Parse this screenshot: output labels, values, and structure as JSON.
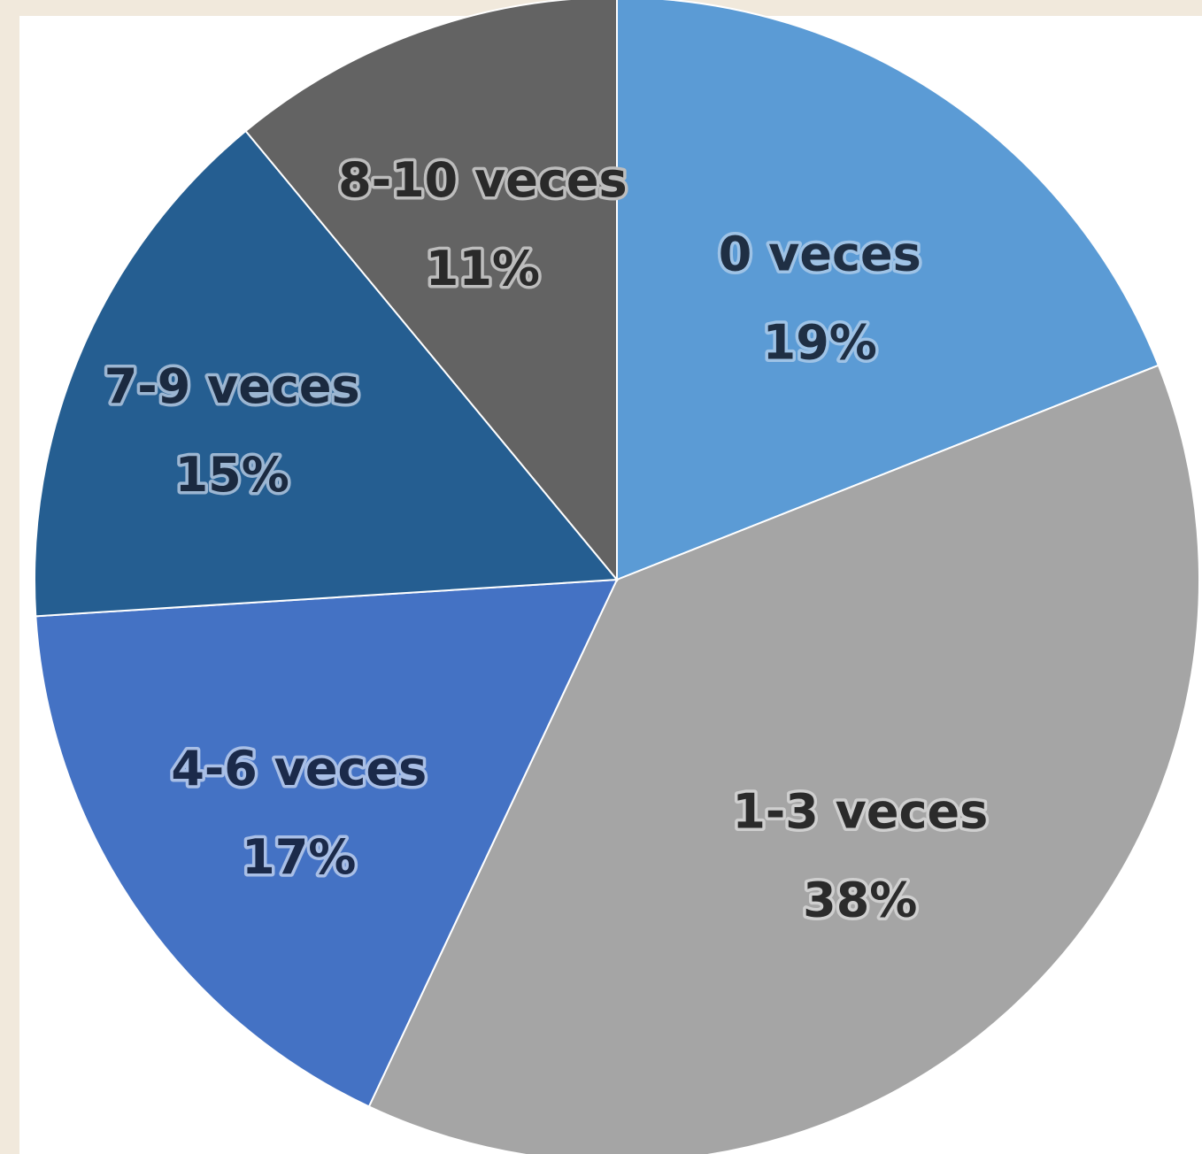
{
  "chart_data": {
    "type": "pie",
    "slices": [
      {
        "label": "0 veces",
        "value": 19,
        "value_label": "19%",
        "color": "#5b9bd5",
        "text_color": "#1f2f44",
        "halo": "#9fc3e6"
      },
      {
        "label": "1-3 veces",
        "value": 38,
        "value_label": "38%",
        "color": "#a5a5a5",
        "text_color": "#2b2b2b",
        "halo": "#cfcfcf"
      },
      {
        "label": "4-6 veces",
        "value": 17,
        "value_label": "17%",
        "color": "#4472c4",
        "text_color": "#1b2a4a",
        "halo": "#a9bfe6"
      },
      {
        "label": "7-9 veces",
        "value": 15,
        "value_label": "15%",
        "color": "#255e91",
        "text_color": "#1b2a40",
        "halo": "#9cb6d2"
      },
      {
        "label": "8-10 veces",
        "value": 11,
        "value_label": "11%",
        "color": "#636363",
        "text_color": "#2a2a2a",
        "halo": "#bdbdbd"
      }
    ],
    "start_angle_deg": 0,
    "direction": "clockwise"
  }
}
